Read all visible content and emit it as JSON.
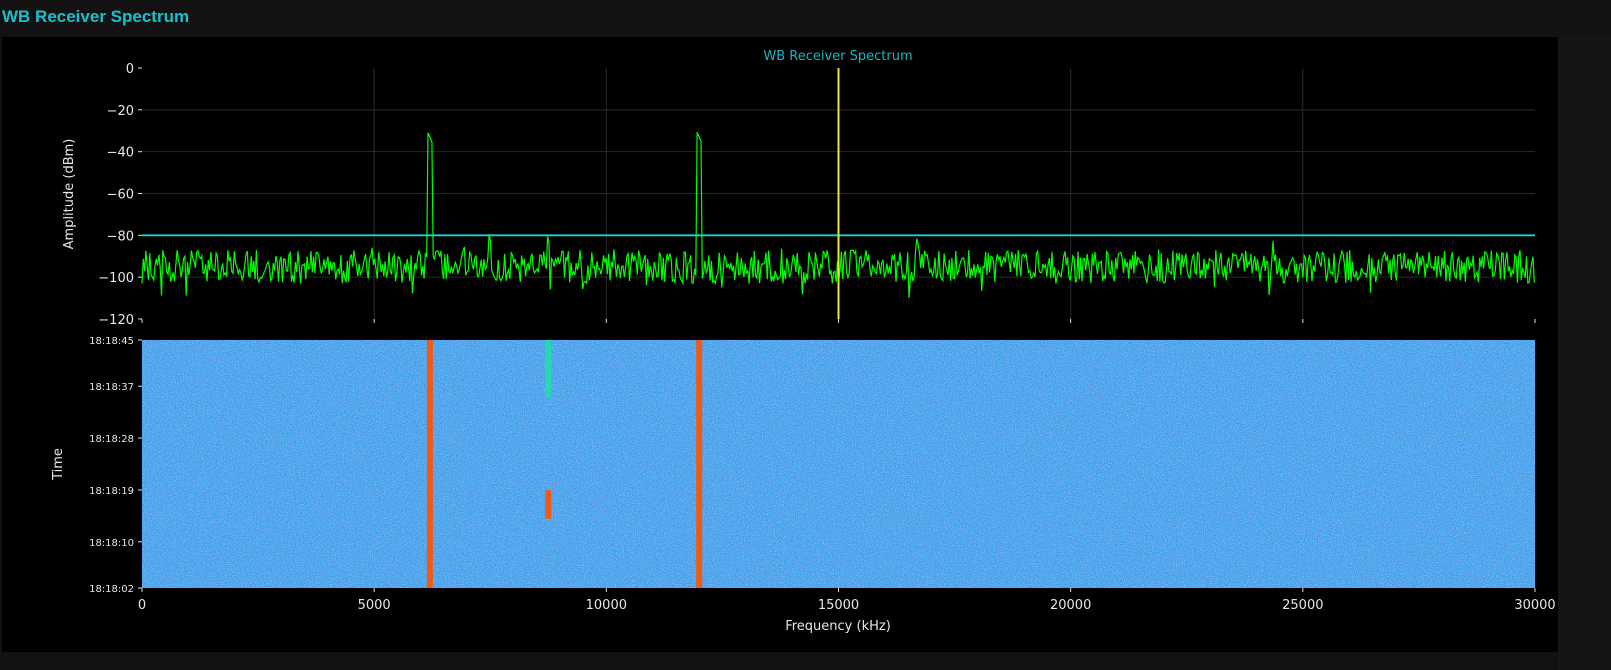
{
  "header": {
    "title": "WB Receiver Spectrum"
  },
  "colors": {
    "title": "#17c2cc",
    "trace": "#00ff00",
    "threshold": "#19d3d9",
    "marker": "#e8e83a",
    "waterfall_bg": "#3b9fe8",
    "signal_hot": "#f05a14",
    "signal_warm": "#27d9b0"
  },
  "chart_data": [
    {
      "type": "line",
      "title": "WB Receiver Spectrum",
      "xlabel": "Frequency (kHz)",
      "ylabel": "Amplitude (dBm)",
      "xlim": [
        0,
        30000
      ],
      "ylim": [
        -120,
        0
      ],
      "xticks": [
        0,
        5000,
        10000,
        15000,
        20000,
        25000,
        30000
      ],
      "yticks": [
        0,
        -20,
        -40,
        -60,
        -80,
        -100,
        -120
      ],
      "grid": true,
      "noise_floor_dbm": -95,
      "noise_range_dbm": [
        -110,
        -80
      ],
      "peaks": [
        {
          "freq_khz": 6200,
          "amplitude_dbm": -30
        },
        {
          "freq_khz": 12000,
          "amplitude_dbm": -30
        },
        {
          "freq_khz": 8750,
          "amplitude_dbm": -79
        },
        {
          "freq_khz": 7500,
          "amplitude_dbm": -79
        },
        {
          "freq_khz": 16700,
          "amplitude_dbm": -80
        }
      ],
      "threshold_line_dbm": -80,
      "marker_line_khz": 15000
    },
    {
      "type": "heatmap",
      "xlabel": "Frequency (kHz)",
      "ylabel": "Time",
      "xlim": [
        0,
        30000
      ],
      "yticks": [
        "18:18:45",
        "18:18:37",
        "18:18:28",
        "18:18:19",
        "18:18:10",
        "18:18:02"
      ],
      "signals": [
        {
          "freq_khz": 6200,
          "time_from": "18:18:02",
          "time_to": "18:18:45",
          "level": "hot"
        },
        {
          "freq_khz": 12000,
          "time_from": "18:18:02",
          "time_to": "18:18:45",
          "level": "hot"
        },
        {
          "freq_khz": 8750,
          "time_from": "18:18:14",
          "time_to": "18:18:19",
          "level": "hot"
        },
        {
          "freq_khz": 8750,
          "time_from": "18:18:35",
          "time_to": "18:18:45",
          "level": "warm"
        }
      ]
    }
  ],
  "labels": {
    "plot_title": "WB Receiver Spectrum",
    "ylabel_spectrum": "Amplitude (dBm)",
    "ylabel_waterfall": "Time",
    "xlabel": "Frequency (kHz)",
    "yticks_spectrum": [
      "0",
      "−20",
      "−40",
      "−60",
      "−80",
      "−100",
      "−120"
    ],
    "yticks_waterfall": [
      "18:18:45",
      "18:18:37",
      "18:18:28",
      "18:18:19",
      "18:18:10",
      "18:18:02"
    ],
    "xticks": [
      "0",
      "5000",
      "10000",
      "15000",
      "20000",
      "25000",
      "30000"
    ]
  }
}
